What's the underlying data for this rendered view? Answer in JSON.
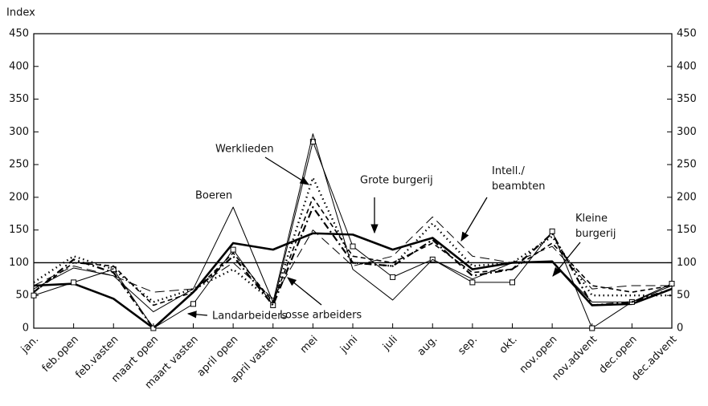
{
  "chart_data": {
    "type": "line",
    "y_label": "Index",
    "categories": [
      "jan.",
      "feb.open",
      "feb.vasten",
      "maart open",
      "maart vasten",
      "april open",
      "april vasten",
      "mei",
      "juni",
      "juli",
      "aug.",
      "sep.",
      "okt.",
      "nov.open",
      "nov.advent",
      "dec.open",
      "dec.advent"
    ],
    "series": [
      {
        "name": "Grote burgerij",
        "color": "#000000",
        "width": 2.6,
        "dash": "",
        "values": [
          65,
          68,
          45,
          0,
          55,
          130,
          120,
          145,
          143,
          120,
          138,
          90,
          100,
          102,
          35,
          37,
          60
        ]
      },
      {
        "name": "Werklieden",
        "color": "#000000",
        "width": 1,
        "dash": "",
        "markers": true,
        "values": [
          50,
          70,
          90,
          0,
          37,
          120,
          35,
          285,
          125,
          78,
          105,
          70,
          70,
          148,
          0,
          40,
          68
        ]
      },
      {
        "name": "Boeren",
        "color": "#000000",
        "width": 1,
        "dash": "",
        "values": [
          60,
          92,
          80,
          25,
          60,
          185,
          40,
          297,
          90,
          43,
          105,
          75,
          100,
          102,
          40,
          40,
          65
        ]
      },
      {
        "name": "Landarbeiders",
        "color": "#000000",
        "width": 2.2,
        "dash": "9 4 2 4",
        "values": [
          55,
          105,
          85,
          0,
          55,
          110,
          35,
          185,
          100,
          95,
          135,
          80,
          90,
          145,
          35,
          40,
          60
        ]
      },
      {
        "name": "Losse arbeiders",
        "color": "#000000",
        "width": 1,
        "dash": "12 6",
        "values": [
          65,
          95,
          80,
          55,
          60,
          100,
          45,
          150,
          95,
          110,
          170,
          110,
          100,
          125,
          60,
          65,
          65
        ]
      },
      {
        "name": "Intell./ beambten",
        "color": "#000000",
        "width": 2.4,
        "dash": "1.5 4",
        "values": [
          70,
          110,
          90,
          40,
          60,
          90,
          40,
          230,
          100,
          95,
          160,
          95,
          100,
          140,
          50,
          50,
          50
        ]
      },
      {
        "name": "Kleine burgerij",
        "color": "#000000",
        "width": 1.6,
        "dash": "6 4",
        "values": [
          55,
          100,
          95,
          35,
          55,
          115,
          40,
          200,
          110,
          100,
          130,
          85,
          90,
          130,
          65,
          55,
          65
        ]
      }
    ],
    "reference_line": 100,
    "ylim": [
      0,
      450
    ],
    "yticks": [
      0,
      50,
      100,
      150,
      200,
      250,
      300,
      350,
      400,
      450
    ],
    "y2lim": [
      0,
      450
    ],
    "y2ticks": [
      0,
      50,
      100,
      150,
      200,
      250,
      300,
      350,
      400,
      450
    ]
  }
}
